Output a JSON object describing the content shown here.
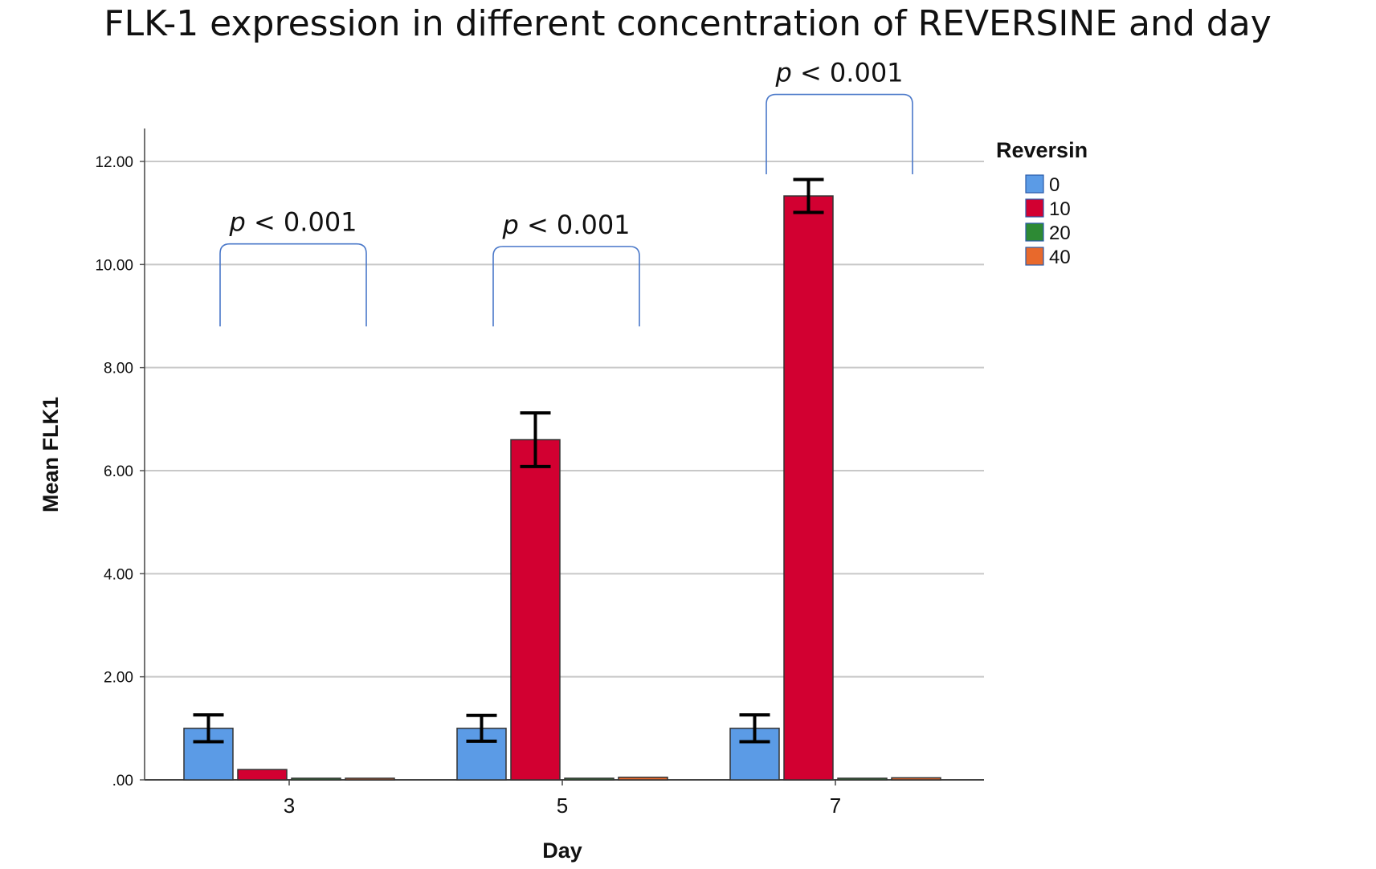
{
  "chart_data": {
    "type": "bar",
    "title": "FLK-1 expression in different concentration of REVERSINE and day",
    "xlabel": "Day",
    "ylabel": "Mean FLK1",
    "categories": [
      "3",
      "5",
      "7"
    ],
    "ylim": [
      0,
      12.9
    ],
    "yticks": [
      0,
      2,
      4,
      6,
      8,
      10,
      12
    ],
    "ytick_labels": [
      ".00",
      "2.00",
      "4.00",
      "6.00",
      "8.00",
      "10.00",
      "12.00"
    ],
    "grid": true,
    "legend": {
      "title": "Reversin",
      "placement": "top-right"
    },
    "series": [
      {
        "name": "0",
        "color": "#5b9be6",
        "values": [
          1.0,
          1.0,
          1.0
        ],
        "error": [
          0.26,
          0.25,
          0.26
        ]
      },
      {
        "name": "10",
        "color": "#d20031",
        "values": [
          0.2,
          6.6,
          11.33
        ],
        "error": [
          null,
          0.52,
          0.32
        ]
      },
      {
        "name": "20",
        "color": "#2d8a34",
        "values": [
          0.01,
          0.01,
          0.01
        ],
        "error": [
          null,
          null,
          null
        ]
      },
      {
        "name": "40",
        "color": "#e8692c",
        "values": [
          0.03,
          0.05,
          0.04
        ],
        "error": [
          null,
          null,
          null
        ]
      }
    ],
    "annotations": [
      {
        "category": "3",
        "p_symbol": "p",
        "text": "< 0.001",
        "bracket_bottom": 8.8,
        "bracket_top": 10.4
      },
      {
        "category": "5",
        "p_symbol": "p",
        "text": "< 0.001",
        "bracket_bottom": 8.8,
        "bracket_top": 10.35
      },
      {
        "category": "7",
        "p_symbol": "p",
        "text": "< 0.001",
        "bracket_bottom": 11.75,
        "bracket_top": 13.3
      }
    ]
  }
}
